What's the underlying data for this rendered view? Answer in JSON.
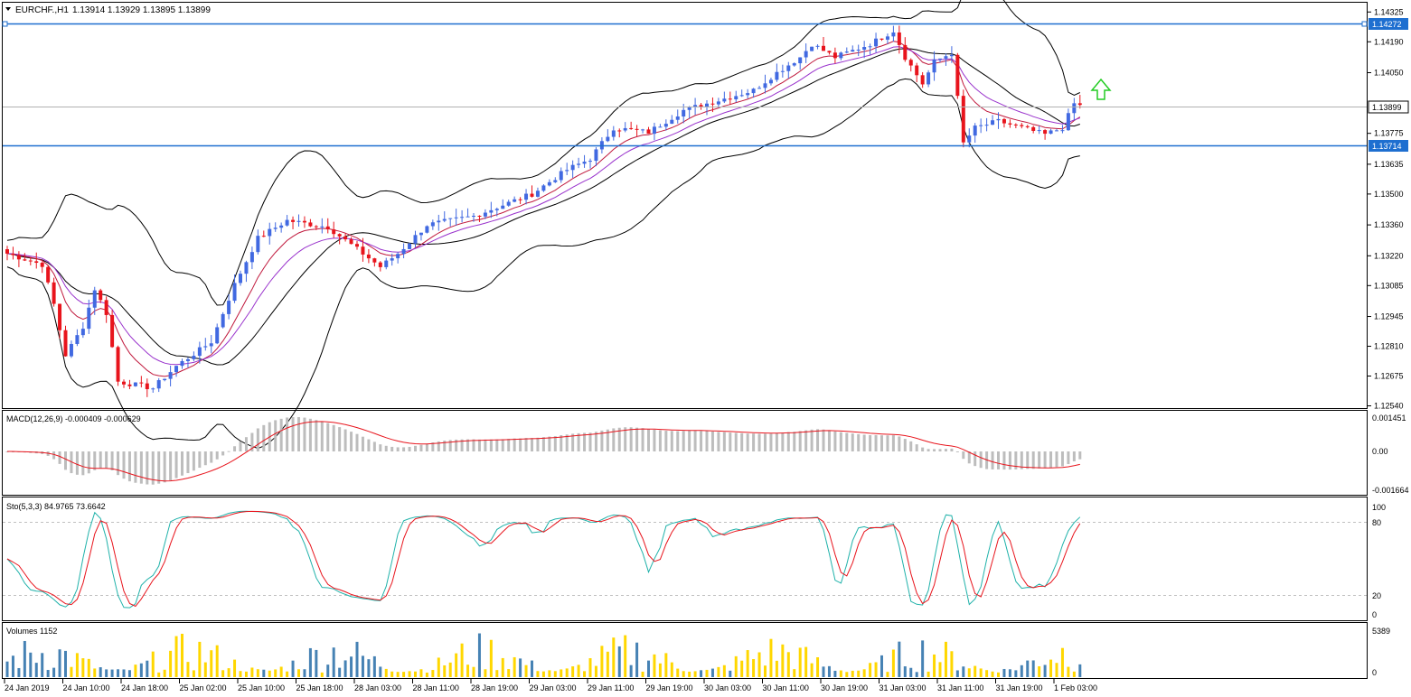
{
  "header": {
    "symbol": "EURCHF.,H1",
    "ohlc": "1.13914 1.13929 1.13895 1.13899"
  },
  "price_axis": {
    "ticks": [
      "1.14325",
      "1.14190",
      "1.14050",
      "1.13775",
      "1.13635",
      "1.13500",
      "1.13360",
      "1.13220",
      "1.13085",
      "1.12945",
      "1.12810",
      "1.12675",
      "1.12540"
    ],
    "tags": {
      "upper_level": "1.14272",
      "current": "1.13899",
      "lower_level": "1.13714"
    }
  },
  "time_axis": [
    "24 Jan 2019",
    "24 Jan 10:00",
    "24 Jan 18:00",
    "25 Jan 02:00",
    "25 Jan 10:00",
    "25 Jan 18:00",
    "28 Jan 03:00",
    "28 Jan 11:00",
    "28 Jan 19:00",
    "29 Jan 03:00",
    "29 Jan 11:00",
    "29 Jan 19:00",
    "30 Jan 03:00",
    "30 Jan 11:00",
    "30 Jan 19:00",
    "31 Jan 03:00",
    "31 Jan 11:00",
    "31 Jan 19:00",
    "1 Feb 03:00"
  ],
  "macd": {
    "label": "MACD(12,26,9) -0.000409 -0.000629",
    "ticks": [
      "0.001451",
      "0.00",
      "-0.001664"
    ]
  },
  "stoch": {
    "label": "Sto(5,3,3) 84.9765 73.6642",
    "ticks": [
      "100",
      "80",
      "20",
      "0"
    ]
  },
  "volumes": {
    "label": "Volumes 1152",
    "ticks": [
      "5389",
      "0"
    ]
  },
  "colors": {
    "bull": "#4169e1",
    "bear": "#e8141c",
    "level": "#1e6fd0",
    "arrow": "#22cc22",
    "macd_hist": "#bdbdbd",
    "signal": "#e8141c",
    "stoch_main": "#20b2aa",
    "vol_up": "#ffd700",
    "vol_down": "#4682b4"
  },
  "chart_data": {
    "type": "candlestick",
    "symbol": "EURCHF.,H1",
    "ylim": [
      1.1254,
      1.1432
    ],
    "levels": [
      1.14272,
      1.13714
    ],
    "current_price": 1.13899,
    "keyframes": [
      {
        "i": 0,
        "c": 1.1323
      },
      {
        "i": 6,
        "c": 1.1318
      },
      {
        "i": 8,
        "c": 1.13
      },
      {
        "i": 10,
        "c": 1.1277
      },
      {
        "i": 13,
        "c": 1.129
      },
      {
        "i": 15,
        "c": 1.1307
      },
      {
        "i": 17,
        "c": 1.1296
      },
      {
        "i": 19,
        "c": 1.1265
      },
      {
        "i": 25,
        "c": 1.1262
      },
      {
        "i": 29,
        "c": 1.1272
      },
      {
        "i": 35,
        "c": 1.1283
      },
      {
        "i": 39,
        "c": 1.1309
      },
      {
        "i": 43,
        "c": 1.133
      },
      {
        "i": 48,
        "c": 1.1338
      },
      {
        "i": 55,
        "c": 1.1335
      },
      {
        "i": 61,
        "c": 1.1323
      },
      {
        "i": 64,
        "c": 1.1317
      },
      {
        "i": 67,
        "c": 1.1323
      },
      {
        "i": 72,
        "c": 1.1336
      },
      {
        "i": 80,
        "c": 1.134
      },
      {
        "i": 90,
        "c": 1.135
      },
      {
        "i": 96,
        "c": 1.1361
      },
      {
        "i": 100,
        "c": 1.1366
      },
      {
        "i": 104,
        "c": 1.138
      },
      {
        "i": 110,
        "c": 1.1378
      },
      {
        "i": 116,
        "c": 1.1388
      },
      {
        "i": 124,
        "c": 1.1394
      },
      {
        "i": 128,
        "c": 1.1397
      },
      {
        "i": 132,
        "c": 1.1405
      },
      {
        "i": 136,
        "c": 1.1412
      },
      {
        "i": 138,
        "c": 1.1418
      },
      {
        "i": 142,
        "c": 1.1412
      },
      {
        "i": 148,
        "c": 1.1418
      },
      {
        "i": 152,
        "c": 1.1424
      },
      {
        "i": 154,
        "c": 1.1412
      },
      {
        "i": 157,
        "c": 1.14
      },
      {
        "i": 159,
        "c": 1.141
      },
      {
        "i": 162,
        "c": 1.1414
      },
      {
        "i": 164,
        "c": 1.1373
      },
      {
        "i": 166,
        "c": 1.138
      },
      {
        "i": 170,
        "c": 1.1383
      },
      {
        "i": 174,
        "c": 1.138
      },
      {
        "i": 178,
        "c": 1.1377
      },
      {
        "i": 181,
        "c": 1.138
      },
      {
        "i": 183,
        "c": 1.1391
      },
      {
        "i": 184,
        "c": 1.139
      }
    ]
  }
}
